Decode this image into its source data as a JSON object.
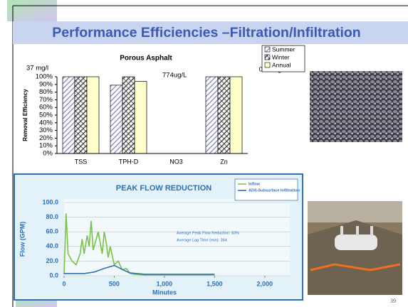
{
  "title": "Performance Efficiencies –Filtration/Infiltration",
  "page_number": "39",
  "chart_data": [
    {
      "type": "bar",
      "title": "Porous Asphalt",
      "y_label": "Removal Efficiency",
      "categories": [
        "TSS",
        "TPH-D",
        "NO3",
        "Zn"
      ],
      "series": [
        {
          "name": "Summer",
          "color": "#b4b4e6",
          "hatch": "diagonal",
          "values": [
            100,
            89,
            null,
            100
          ]
        },
        {
          "name": "Winter",
          "color": "#404040",
          "hatch": "cross",
          "values": [
            100,
            100,
            null,
            100
          ]
        },
        {
          "name": "Annual",
          "color": "#ffffcc",
          "hatch": "none",
          "values": [
            100,
            94,
            null,
            100
          ]
        }
      ],
      "ylim": [
        0,
        100
      ],
      "yticks": [
        {
          "value": 0,
          "label": "0%"
        },
        {
          "value": 10,
          "label": "10%"
        },
        {
          "value": 20,
          "label": "20%"
        },
        {
          "value": 30,
          "label": "30%"
        },
        {
          "value": 40,
          "label": "40%"
        },
        {
          "value": 50,
          "label": "50%"
        },
        {
          "value": 60,
          "label": "60%"
        },
        {
          "value": 70,
          "label": "70%"
        },
        {
          "value": 80,
          "label": "80%"
        },
        {
          "value": 90,
          "label": "90%"
        },
        {
          "value": 100,
          "label": "100%"
        }
      ],
      "annotations": [
        "37 mg/l",
        "774ug/L",
        "0.06mg/l"
      ],
      "legend": "top-right"
    },
    {
      "type": "line",
      "title": "PEAK FLOW REDUCTION",
      "y_label": "Flow (GPM)",
      "x_label": "Minutes",
      "series": [
        {
          "name": "Inflow",
          "color": "#7cc242",
          "x": [
            0,
            20,
            40,
            80,
            120,
            160,
            180,
            200,
            230,
            250,
            270,
            290,
            310,
            340,
            360,
            380,
            400,
            420,
            440,
            460,
            500,
            540,
            580,
            620,
            660,
            700,
            800,
            1000,
            1500
          ],
          "values": [
            2,
            85,
            30,
            20,
            15,
            30,
            50,
            30,
            55,
            40,
            75,
            35,
            45,
            60,
            45,
            30,
            60,
            45,
            25,
            40,
            15,
            20,
            8,
            10,
            3,
            2,
            1,
            1,
            1
          ]
        },
        {
          "name": "ADS-Subsurface Infiltration",
          "color": "#2f6fb8",
          "x": [
            0,
            200,
            300,
            400,
            500,
            560,
            650,
            800,
            1000,
            1500
          ],
          "values": [
            3,
            3,
            5,
            10,
            14,
            10,
            4,
            2,
            2,
            2
          ]
        }
      ],
      "xlim": [
        0,
        2250
      ],
      "ylim": [
        0,
        100
      ],
      "xticks": [
        0,
        500,
        {
          "value": 1000,
          "label": "1,000"
        },
        {
          "value": 1500,
          "label": "1,500"
        },
        {
          "value": 2000,
          "label": "2,000"
        }
      ],
      "yticks": [
        {
          "value": 0,
          "label": "0.0"
        },
        {
          "value": 20,
          "label": "20.0"
        },
        {
          "value": 40,
          "label": "40.0"
        },
        {
          "value": 60,
          "label": "60.0"
        },
        {
          "value": 80,
          "label": "80.0"
        },
        {
          "value": 100,
          "label": "100.0"
        }
      ],
      "annotations": [
        "Average Peak Flow Reduction: 83%",
        "Average Lag Time (min): 364"
      ],
      "legend": "top-right"
    }
  ]
}
